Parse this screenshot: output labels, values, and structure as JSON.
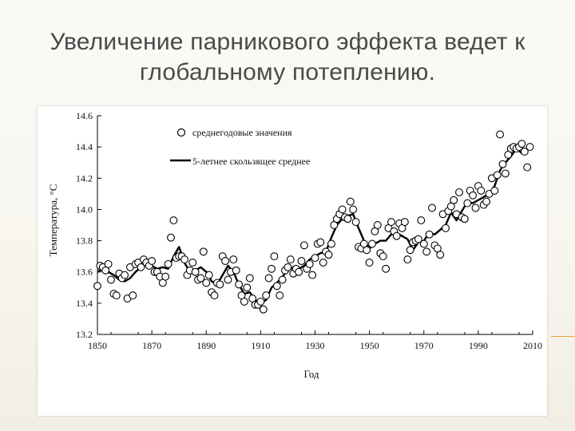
{
  "slide": {
    "title_line1": "Увеличение парникового эффекта ведет к",
    "title_line2": "глобальному потеплению."
  },
  "colors": {
    "accent": "#f0a33a",
    "series": "#000000",
    "background": "#ffffff"
  },
  "chart_data": {
    "type": "scatter",
    "title": "",
    "xlabel": "Год",
    "ylabel": "Температура, °С",
    "xlim": [
      1850,
      2010
    ],
    "ylim": [
      13.2,
      14.6
    ],
    "xticks": [
      "1850",
      "1870",
      "1890",
      "1910",
      "1930",
      "1950",
      "1970",
      "1990",
      "2010"
    ],
    "yticks": [
      "13.2",
      "13.4",
      "13.6",
      "13.8",
      "14.0",
      "14.2",
      "14.4",
      "14.6"
    ],
    "legend_position": "top-left",
    "grid": false,
    "series": [
      {
        "name": "среднегодовые значения",
        "kind": "markers",
        "x": [
          1850,
          1851,
          1852,
          1853,
          1854,
          1855,
          1856,
          1857,
          1858,
          1859,
          1860,
          1861,
          1862,
          1863,
          1864,
          1865,
          1866,
          1867,
          1868,
          1869,
          1870,
          1871,
          1872,
          1873,
          1874,
          1875,
          1876,
          1877,
          1878,
          1879,
          1880,
          1881,
          1882,
          1883,
          1884,
          1885,
          1886,
          1887,
          1888,
          1889,
          1890,
          1891,
          1892,
          1893,
          1894,
          1895,
          1896,
          1897,
          1898,
          1899,
          1900,
          1901,
          1902,
          1903,
          1904,
          1905,
          1906,
          1907,
          1908,
          1909,
          1910,
          1911,
          1912,
          1913,
          1914,
          1915,
          1916,
          1917,
          1918,
          1919,
          1920,
          1921,
          1922,
          1923,
          1924,
          1925,
          1926,
          1927,
          1928,
          1929,
          1930,
          1931,
          1932,
          1933,
          1934,
          1935,
          1936,
          1937,
          1938,
          1939,
          1940,
          1941,
          1942,
          1943,
          1944,
          1945,
          1946,
          1947,
          1948,
          1949,
          1950,
          1951,
          1952,
          1953,
          1954,
          1955,
          1956,
          1957,
          1958,
          1959,
          1960,
          1961,
          1962,
          1963,
          1964,
          1965,
          1966,
          1967,
          1968,
          1969,
          1970,
          1971,
          1972,
          1973,
          1974,
          1975,
          1976,
          1977,
          1978,
          1979,
          1980,
          1981,
          1982,
          1983,
          1984,
          1985,
          1986,
          1987,
          1988,
          1989,
          1990,
          1991,
          1992,
          1993,
          1994,
          1995,
          1996,
          1997,
          1998,
          1999,
          2000,
          2001,
          2002,
          2003,
          2004,
          2005,
          2006,
          2007,
          2008,
          2009
        ],
        "y": [
          13.51,
          13.64,
          13.63,
          13.61,
          13.65,
          13.55,
          13.46,
          13.45,
          13.59,
          13.56,
          13.58,
          13.43,
          13.63,
          13.45,
          13.65,
          13.66,
          13.63,
          13.68,
          13.66,
          13.64,
          13.67,
          13.6,
          13.6,
          13.57,
          13.53,
          13.57,
          13.65,
          13.82,
          13.93,
          13.69,
          13.7,
          13.7,
          13.68,
          13.58,
          13.61,
          13.66,
          13.6,
          13.55,
          13.56,
          13.73,
          13.53,
          13.58,
          13.47,
          13.45,
          13.53,
          13.52,
          13.7,
          13.67,
          13.55,
          13.6,
          13.68,
          13.61,
          13.52,
          13.45,
          13.41,
          13.5,
          13.56,
          13.43,
          13.39,
          13.39,
          13.41,
          13.36,
          13.45,
          13.56,
          13.62,
          13.7,
          13.51,
          13.45,
          13.55,
          13.61,
          13.63,
          13.68,
          13.59,
          13.62,
          13.6,
          13.67,
          13.77,
          13.62,
          13.65,
          13.58,
          13.69,
          13.78,
          13.79,
          13.66,
          13.73,
          13.71,
          13.78,
          13.9,
          13.94,
          13.97,
          14.0,
          13.95,
          13.94,
          14.05,
          14.0,
          13.92,
          13.76,
          13.75,
          13.78,
          13.74,
          13.66,
          13.78,
          13.86,
          13.9,
          13.72,
          13.7,
          13.62,
          13.88,
          13.92,
          13.86,
          13.83,
          13.91,
          13.88,
          13.92,
          13.68,
          13.74,
          13.79,
          13.8,
          13.81,
          13.93,
          13.78,
          13.73,
          13.84,
          14.01,
          13.77,
          13.75,
          13.71,
          13.97,
          13.88,
          13.99,
          14.02,
          14.06,
          13.97,
          14.11,
          13.95,
          13.94,
          14.04,
          14.12,
          14.09,
          14.01,
          14.15,
          14.12,
          14.03,
          14.05,
          14.1,
          14.2,
          14.12,
          14.22,
          14.48,
          14.29,
          14.23,
          14.35,
          14.39,
          14.4,
          14.39,
          14.4,
          14.42,
          14.37,
          14.27,
          14.4
        ]
      },
      {
        "name": "5-летнее скользящее среднее",
        "kind": "line",
        "x": [
          1850,
          1852,
          1854,
          1856,
          1858,
          1860,
          1862,
          1864,
          1866,
          1868,
          1870,
          1872,
          1874,
          1876,
          1878,
          1880,
          1882,
          1884,
          1886,
          1888,
          1890,
          1892,
          1894,
          1896,
          1898,
          1900,
          1902,
          1904,
          1906,
          1908,
          1910,
          1912,
          1914,
          1916,
          1918,
          1920,
          1922,
          1924,
          1926,
          1928,
          1930,
          1932,
          1934,
          1936,
          1938,
          1940,
          1942,
          1944,
          1946,
          1948,
          1950,
          1952,
          1954,
          1956,
          1958,
          1960,
          1962,
          1964,
          1966,
          1968,
          1970,
          1972,
          1974,
          1976,
          1978,
          1980,
          1982,
          1984,
          1986,
          1988,
          1990,
          1992,
          1994,
          1996,
          1998,
          2000,
          2002,
          2004,
          2006,
          2008
        ],
        "y": [
          13.6,
          13.62,
          13.6,
          13.58,
          13.55,
          13.54,
          13.56,
          13.6,
          13.63,
          13.65,
          13.64,
          13.62,
          13.63,
          13.62,
          13.7,
          13.76,
          13.66,
          13.6,
          13.61,
          13.63,
          13.6,
          13.54,
          13.52,
          13.58,
          13.64,
          13.6,
          13.52,
          13.46,
          13.47,
          13.42,
          13.4,
          13.42,
          13.5,
          13.53,
          13.57,
          13.61,
          13.63,
          13.62,
          13.64,
          13.68,
          13.7,
          13.72,
          13.73,
          13.82,
          13.9,
          13.94,
          13.96,
          13.97,
          13.88,
          13.8,
          13.75,
          13.78,
          13.8,
          13.8,
          13.84,
          13.85,
          13.83,
          13.81,
          13.74,
          13.79,
          13.8,
          13.85,
          13.84,
          13.87,
          13.9,
          13.98,
          13.93,
          13.99,
          14.05,
          14.04,
          14.06,
          14.08,
          14.1,
          14.15,
          14.25,
          14.3,
          14.34,
          14.39,
          14.36,
          14.38
        ]
      }
    ]
  }
}
